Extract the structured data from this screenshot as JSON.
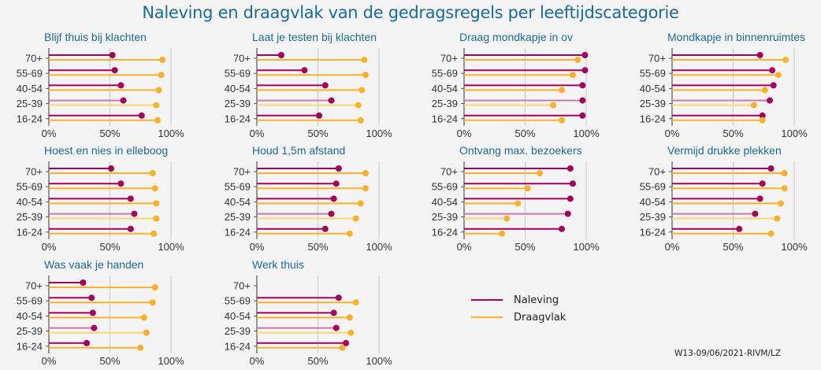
{
  "chart_data": {
    "type": "lollipop",
    "title": "Naleving en draagvlak van de gedragsregels per leeftijdscategorie",
    "categories": [
      "70+",
      "55-69",
      "40-54",
      "25-39",
      "16-24"
    ],
    "xlim": [
      0,
      100
    ],
    "x_ticks": [
      "0%",
      "50%",
      "100%"
    ],
    "x_tick_values": [
      0,
      50,
      100
    ],
    "grid": true,
    "legend_position": "bottom-center",
    "series_names": [
      "Naleving",
      "Draagvlak"
    ],
    "colors": {
      "naleving": "#a3005d",
      "naleving_light": "#cc77a8",
      "draagvlak": "#fbb12a",
      "draagvlak_light": "#fdd56f",
      "title": "#1b6a97",
      "grid": "#c8c8c8",
      "axis": "#555555"
    },
    "panels": [
      {
        "title": "Blijf thuis bij klachten",
        "naleving": [
          52,
          54,
          59,
          61,
          76
        ],
        "draagvlak": [
          93,
          92,
          90,
          88,
          89
        ]
      },
      {
        "title": "Laat je testen bij klachten",
        "naleving": [
          20,
          39,
          56,
          61,
          51
        ],
        "draagvlak": [
          88,
          89,
          86,
          83,
          85
        ]
      },
      {
        "title": "Draag mondkapje in ov",
        "naleving": [
          99,
          99,
          97,
          97,
          97
        ],
        "draagvlak": [
          93,
          89,
          80,
          73,
          80
        ]
      },
      {
        "title": "Mondkapje in binnenruimtes",
        "naleving": [
          72,
          82,
          83,
          80,
          74
        ],
        "draagvlak": [
          93,
          87,
          76,
          67,
          74
        ]
      },
      {
        "title": "Hoest en nies in elleboog",
        "naleving": [
          51,
          59,
          67,
          70,
          67
        ],
        "draagvlak": [
          85,
          87,
          88,
          88,
          86
        ]
      },
      {
        "title": "Houd 1,5m afstand",
        "naleving": [
          67,
          65,
          63,
          61,
          56
        ],
        "draagvlak": [
          89,
          89,
          85,
          81,
          76
        ]
      },
      {
        "title": "Ontvang max. bezoekers",
        "naleving": [
          87,
          89,
          87,
          85,
          80
        ],
        "draagvlak": [
          62,
          52,
          44,
          35,
          31
        ]
      },
      {
        "title": "Vermijd drukke plekken",
        "naleving": [
          81,
          74,
          72,
          68,
          55
        ],
        "draagvlak": [
          92,
          92,
          89,
          86,
          81
        ]
      },
      {
        "title": "Was vaak je handen",
        "naleving": [
          28,
          35,
          36,
          37,
          31
        ],
        "draagvlak": [
          87,
          85,
          78,
          80,
          75
        ]
      },
      {
        "title": "Werk thuis",
        "naleving": [
          null,
          67,
          63,
          65,
          73
        ],
        "draagvlak": [
          null,
          81,
          76,
          77,
          70
        ]
      }
    ]
  },
  "legend": {
    "naleving_label": "Naleving",
    "draagvlak_label": "Draagvlak"
  },
  "footnote": "W13-09/06/2021-RIVM/LZ"
}
